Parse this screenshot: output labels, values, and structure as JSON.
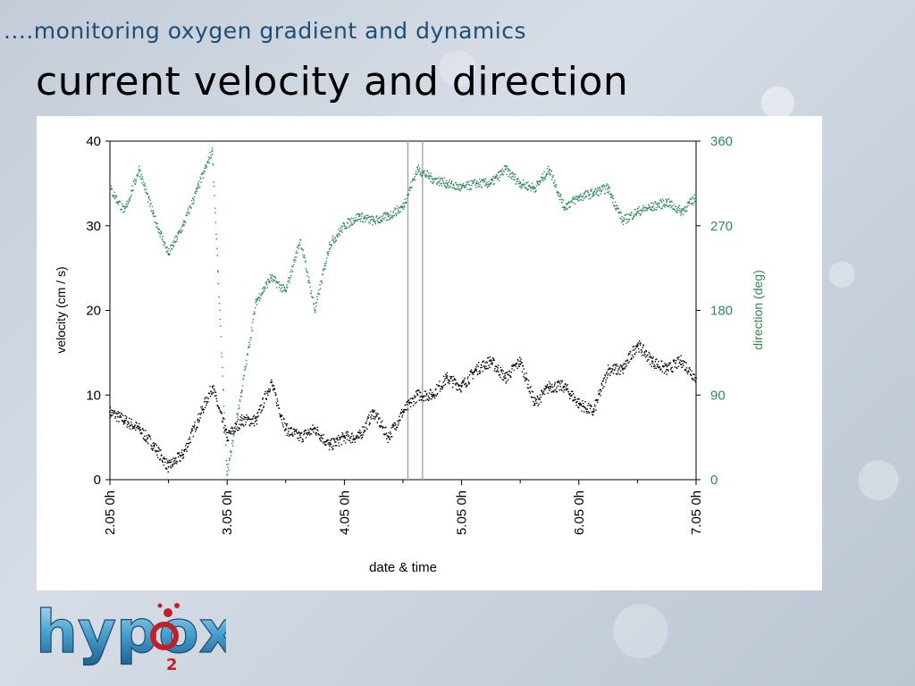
{
  "header": {
    "subtitle": "....monitoring oxygen gradient and dynamics",
    "title": "current velocity and direction"
  },
  "logo": {
    "text": "hypox",
    "subscript": "2"
  },
  "chart_data": {
    "type": "scatter",
    "xlabel": "date & time",
    "ylabel": "velocity (cm / s)",
    "ylabel_right": "direction (deg)",
    "x_ticks": [
      "2.05 0h",
      "3.05 0h",
      "4.05 0h",
      "5.05 0h",
      "6.05 0h",
      "7.05 0h"
    ],
    "xlim": [
      "2.05 0h",
      "7.05 0h"
    ],
    "ylim": [
      0,
      40
    ],
    "ylim_right": [
      0,
      360
    ],
    "y_ticks": [
      0,
      10,
      20,
      30,
      40
    ],
    "y_ticks_right": [
      0,
      90,
      180,
      270,
      360
    ],
    "right_axis_color": "#2e8b57",
    "grid": false,
    "markers": [
      "4.05 13h",
      "4.05 16h"
    ],
    "series": [
      {
        "name": "velocity (cm / s)",
        "axis": "left",
        "color": "#000000",
        "x": [
          "2.05 0h",
          "2.05 3h",
          "2.05 6h",
          "2.05 9h",
          "2.05 12h",
          "2.05 15h",
          "2.05 18h",
          "2.05 21h",
          "3.05 0h",
          "3.05 3h",
          "3.05 6h",
          "3.05 9h",
          "3.05 12h",
          "3.05 15h",
          "3.05 18h",
          "3.05 21h",
          "4.05 0h",
          "4.05 3h",
          "4.05 6h",
          "4.05 9h",
          "4.05 12h",
          "4.05 15h",
          "4.05 18h",
          "4.05 21h",
          "5.05 0h",
          "5.05 3h",
          "5.05 6h",
          "5.05 9h",
          "5.05 12h",
          "5.05 15h",
          "5.05 18h",
          "5.05 21h",
          "6.05 0h",
          "6.05 3h",
          "6.05 6h",
          "6.05 9h",
          "6.05 12h",
          "6.05 15h",
          "6.05 18h",
          "6.05 21h",
          "7.05 0h"
        ],
        "values": [
          8,
          7,
          6,
          4,
          1.5,
          3,
          7,
          11,
          5,
          7,
          7,
          11.5,
          6,
          5,
          6,
          4,
          5,
          5,
          8,
          5,
          8,
          10,
          10,
          12,
          11,
          13,
          14,
          12,
          14,
          9,
          11,
          11,
          9,
          8,
          13,
          13,
          16,
          14,
          13,
          14,
          12
        ]
      },
      {
        "name": "direction (deg)",
        "axis": "right",
        "color": "#2e8b57",
        "x": [
          "2.05 0h",
          "2.05 3h",
          "2.05 6h",
          "2.05 9h",
          "2.05 12h",
          "2.05 15h",
          "2.05 18h",
          "2.05 21h",
          "3.05 0h",
          "3.05 3h",
          "3.05 6h",
          "3.05 9h",
          "3.05 12h",
          "3.05 15h",
          "3.05 18h",
          "3.05 21h",
          "4.05 0h",
          "4.05 3h",
          "4.05 6h",
          "4.05 9h",
          "4.05 12h",
          "4.05 15h",
          "4.05 18h",
          "4.05 21h",
          "5.05 0h",
          "5.05 3h",
          "5.05 6h",
          "5.05 9h",
          "5.05 12h",
          "5.05 15h",
          "5.05 18h",
          "5.05 21h",
          "6.05 0h",
          "6.05 3h",
          "6.05 6h",
          "6.05 9h",
          "6.05 12h",
          "6.05 15h",
          "6.05 18h",
          "6.05 21h",
          "7.05 0h"
        ],
        "values": [
          310,
          285,
          330,
          280,
          240,
          270,
          310,
          350,
          5,
          95,
          190,
          215,
          200,
          255,
          180,
          250,
          270,
          280,
          275,
          280,
          290,
          330,
          320,
          315,
          310,
          315,
          315,
          330,
          315,
          310,
          330,
          290,
          300,
          305,
          310,
          275,
          285,
          290,
          295,
          285,
          300
        ]
      }
    ]
  }
}
